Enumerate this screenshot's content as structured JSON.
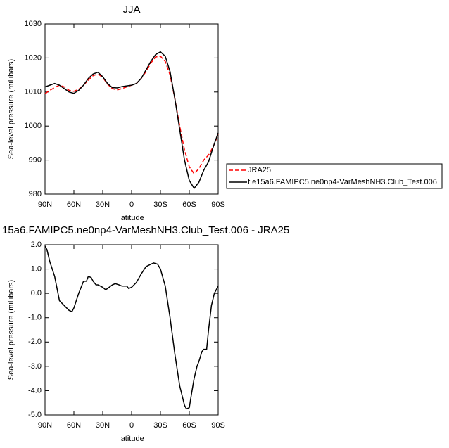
{
  "chart_data": [
    {
      "type": "line",
      "title": "JJA",
      "xlabel": "latitude",
      "ylabel": "Sea-level pressure (millibars)",
      "x": [
        90,
        85,
        80,
        75,
        70,
        65,
        60,
        55,
        50,
        45,
        40,
        35,
        30,
        25,
        20,
        15,
        10,
        5,
        0,
        -5,
        -10,
        -15,
        -20,
        -25,
        -30,
        -35,
        -40,
        -45,
        -50,
        -55,
        -60,
        -65,
        -70,
        -75,
        -80,
        -85,
        -90
      ],
      "series": [
        {
          "name": "JRA25",
          "color": "#ff0000",
          "dash": true,
          "values": [
            1009.5,
            1010.5,
            1011.3,
            1012,
            1011.5,
            1010.5,
            1010.2,
            1010.8,
            1012,
            1013.5,
            1014.8,
            1015.3,
            1014.3,
            1012.3,
            1011,
            1010.6,
            1011,
            1011.5,
            1012,
            1012.5,
            1014,
            1016,
            1018.5,
            1020.3,
            1020.5,
            1019,
            1015,
            1008,
            1000,
            993,
            988,
            986,
            987.5,
            990,
            991.5,
            994,
            997.5
          ]
        },
        {
          "name": "f.e15a6.FAMIPC5.ne0np4-VarMeshNH3.Club_Test.006",
          "color": "#000000",
          "dash": false,
          "values": [
            1011.5,
            1012,
            1012.5,
            1012,
            1011,
            1010,
            1009.6,
            1010.5,
            1012,
            1014,
            1015.3,
            1015.8,
            1014.5,
            1012.5,
            1011.3,
            1011.2,
            1011.6,
            1011.8,
            1012,
            1012.5,
            1014,
            1016.5,
            1019,
            1021,
            1021.8,
            1020.5,
            1016,
            1008,
            999,
            990,
            984,
            981.7,
            983.5,
            987,
            989.5,
            994,
            998
          ]
        }
      ],
      "xlim": [
        90,
        -90
      ],
      "xticks": [
        {
          "value": 90,
          "label": "90N"
        },
        {
          "value": 60,
          "label": "60N"
        },
        {
          "value": 30,
          "label": "30N"
        },
        0,
        {
          "value": -30,
          "label": "30S"
        },
        {
          "value": -60,
          "label": "60S"
        },
        {
          "value": -90,
          "label": "90S"
        }
      ],
      "ylim": [
        980,
        1030
      ],
      "yticks": [
        980,
        990,
        1000,
        1010,
        1020,
        1030
      ],
      "legend": "right"
    },
    {
      "type": "line",
      "title": "15a6.FAMIPC5.ne0np4-VarMeshNH3.Club_Test.006 - JRA25",
      "xlabel": "latitude",
      "ylabel": "Sea-level pressure (millibars)",
      "x": [
        90,
        88,
        85,
        80,
        75,
        70,
        65,
        62,
        60,
        55,
        50,
        47,
        45,
        42,
        40,
        37,
        35,
        30,
        27,
        25,
        20,
        17,
        13,
        10,
        5,
        3,
        0,
        -5,
        -10,
        -15,
        -20,
        -23,
        -27,
        -30,
        -35,
        -40,
        -45,
        -50,
        -55,
        -57,
        -60,
        -62,
        -65,
        -68,
        -70,
        -73,
        -75,
        -78,
        -80,
        -83,
        -86,
        -90
      ],
      "series": [
        {
          "color": "#000000",
          "dash": false,
          "values": [
            1.95,
            1.8,
            1.3,
            0.7,
            -0.3,
            -0.5,
            -0.7,
            -0.75,
            -0.6,
            0.0,
            0.5,
            0.5,
            0.7,
            0.65,
            0.5,
            0.35,
            0.35,
            0.25,
            0.15,
            0.2,
            0.35,
            0.4,
            0.35,
            0.3,
            0.3,
            0.2,
            0.25,
            0.45,
            0.8,
            1.1,
            1.2,
            1.25,
            1.2,
            1.0,
            0.3,
            -1.0,
            -2.5,
            -3.8,
            -4.6,
            -4.75,
            -4.7,
            -4.2,
            -3.5,
            -3.0,
            -2.8,
            -2.4,
            -2.3,
            -2.3,
            -1.5,
            -0.5,
            0.0,
            0.3
          ]
        }
      ],
      "xlim": [
        90,
        -90
      ],
      "xticks": [
        {
          "value": 90,
          "label": "90N"
        },
        {
          "value": 60,
          "label": "60N"
        },
        {
          "value": 30,
          "label": "30N"
        },
        0,
        {
          "value": -30,
          "label": "30S"
        },
        {
          "value": -60,
          "label": "60S"
        },
        {
          "value": -90,
          "label": "90S"
        }
      ],
      "ylim": [
        -5,
        2
      ],
      "yticks": [
        {
          "value": -5,
          "label": "-5.0"
        },
        {
          "value": -4,
          "label": "-4.0"
        },
        {
          "value": -3,
          "label": "-3.0"
        },
        {
          "value": -2,
          "label": "-2.0"
        },
        {
          "value": -1,
          "label": "-1.0"
        },
        {
          "value": 0,
          "label": "0.0"
        },
        {
          "value": 1,
          "label": "1.0"
        },
        {
          "value": 2,
          "label": "2.0"
        }
      ]
    }
  ]
}
